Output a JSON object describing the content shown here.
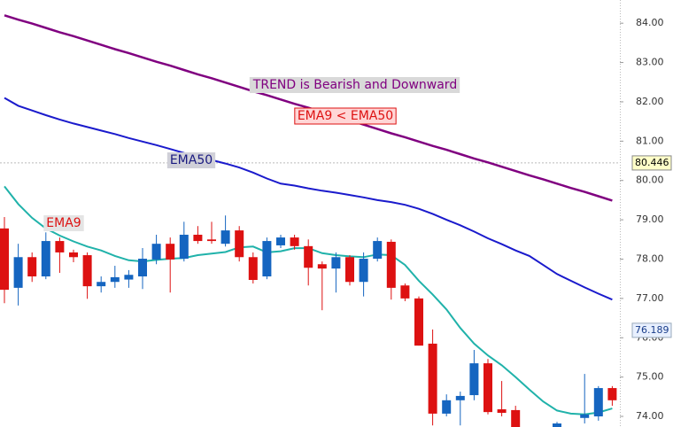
{
  "chart_data": {
    "type": "candlestick",
    "candles": {
      "open": [
        78.78,
        77.27,
        78.05,
        77.56,
        78.46,
        78.17,
        78.1,
        77.31,
        77.42,
        77.48,
        77.56,
        77.99,
        78.39,
        78.01,
        78.62,
        78.5,
        78.39,
        78.73,
        78.05,
        77.56,
        78.35,
        78.55,
        78.33,
        77.87,
        77.76,
        78.05,
        77.42,
        78.01,
        78.44,
        77.33,
        77.0,
        75.85,
        74.07,
        74.41,
        74.54,
        75.35,
        74.18,
        74.16,
        null,
        null,
        73.73,
        null,
        73.96,
        74.0,
        74.72
      ],
      "high": [
        79.07,
        78.39,
        78.17,
        78.68,
        78.55,
        78.24,
        78.17,
        77.56,
        77.83,
        77.72,
        78.28,
        78.62,
        78.55,
        78.95,
        78.84,
        78.95,
        79.11,
        78.84,
        78.17,
        78.55,
        78.62,
        78.62,
        78.5,
        77.94,
        78.17,
        78.1,
        78.17,
        78.55,
        78.5,
        77.38,
        77.05,
        76.21,
        74.56,
        74.63,
        75.69,
        75.46,
        74.9,
        74.27,
        null,
        null,
        73.86,
        null,
        75.08,
        74.77,
        74.77
      ],
      "low": [
        76.88,
        76.82,
        77.42,
        77.49,
        77.65,
        77.92,
        76.99,
        77.15,
        77.27,
        77.27,
        77.24,
        77.87,
        77.15,
        77.94,
        78.39,
        78.39,
        78.32,
        77.94,
        77.38,
        77.49,
        78.28,
        78.24,
        77.33,
        76.7,
        77.15,
        77.33,
        77.05,
        77.94,
        76.97,
        76.93,
        75.8,
        73.77,
        74.0,
        73.77,
        74.41,
        74.05,
        74.0,
        73.55,
        null,
        null,
        73.73,
        null,
        73.82,
        73.89,
        74.27
      ],
      "close": [
        77.22,
        78.05,
        77.56,
        78.46,
        78.17,
        78.05,
        77.31,
        77.42,
        77.54,
        77.6,
        78.01,
        78.39,
        77.99,
        78.62,
        78.46,
        78.46,
        78.73,
        78.05,
        77.47,
        78.46,
        78.55,
        78.33,
        77.78,
        77.76,
        78.05,
        77.42,
        78.01,
        78.46,
        77.27,
        77.0,
        75.8,
        74.07,
        74.41,
        74.52,
        75.35,
        74.11,
        74.09,
        73.73,
        null,
        null,
        73.82,
        null,
        74.05,
        74.72,
        74.41
      ]
    },
    "up_color": "#1565c0",
    "down_color": "#dd1111",
    "series": [
      {
        "name": "EMA9",
        "color": "#20b2aa",
        "values": [
          79.85,
          79.4,
          79.05,
          78.78,
          78.6,
          78.45,
          78.32,
          78.22,
          78.08,
          77.97,
          77.94,
          77.98,
          78.01,
          78.03,
          78.1,
          78.14,
          78.18,
          78.3,
          78.32,
          78.17,
          78.2,
          78.28,
          78.28,
          78.15,
          78.1,
          78.07,
          78.05,
          78.12,
          78.1,
          77.85,
          77.45,
          77.1,
          76.72,
          76.25,
          75.85,
          75.55,
          75.3,
          75.0,
          74.68,
          74.38,
          74.15,
          74.07,
          74.05,
          74.1,
          74.2
        ]
      },
      {
        "name": "EMA50",
        "color": "#1a1acc",
        "values": [
          82.1,
          81.9,
          81.78,
          81.66,
          81.55,
          81.45,
          81.36,
          81.27,
          81.18,
          81.08,
          80.99,
          80.9,
          80.8,
          80.7,
          80.61,
          80.52,
          80.43,
          80.33,
          80.2,
          80.05,
          79.92,
          79.87,
          79.8,
          79.74,
          79.69,
          79.63,
          79.57,
          79.5,
          79.45,
          79.38,
          79.28,
          79.15,
          79.0,
          78.86,
          78.7,
          78.53,
          78.38,
          78.22,
          78.08,
          77.85,
          77.62,
          77.45,
          77.28,
          77.12,
          76.97
        ]
      }
    ],
    "trend_line": {
      "color": "#800080",
      "values": [
        84.2,
        84.09,
        83.99,
        83.88,
        83.77,
        83.67,
        83.56,
        83.45,
        83.34,
        83.24,
        83.13,
        83.02,
        82.92,
        82.81,
        82.7,
        82.6,
        82.49,
        82.38,
        82.27,
        82.17,
        82.06,
        81.95,
        81.85,
        81.74,
        81.63,
        81.53,
        81.42,
        81.31,
        81.2,
        81.1,
        80.99,
        80.88,
        80.78,
        80.67,
        80.56,
        80.46,
        80.35,
        80.24,
        80.13,
        80.03,
        79.92,
        79.81,
        79.71,
        79.6,
        79.49
      ]
    },
    "annotations": [
      "TREND is Bearish and Downward",
      "EMA9 < EMA50"
    ],
    "ylim": [
      73.73,
      84.59
    ],
    "yticks": [
      {
        "value": 74,
        "label": "74.00"
      },
      {
        "value": 75,
        "label": "75.00"
      },
      {
        "value": 76,
        "label": "76.00"
      },
      {
        "value": 77,
        "label": "77.00"
      },
      {
        "value": 78,
        "label": "78.00"
      },
      {
        "value": 79,
        "label": "79.00"
      },
      {
        "value": 80,
        "label": "80.00"
      },
      {
        "value": 81,
        "label": "81.00"
      },
      {
        "value": 82,
        "label": "82.00"
      },
      {
        "value": 83,
        "label": "83.00"
      },
      {
        "value": 84,
        "label": "84.00"
      }
    ],
    "crosshair_price": 80.446,
    "marker_price": 76.189
  }
}
